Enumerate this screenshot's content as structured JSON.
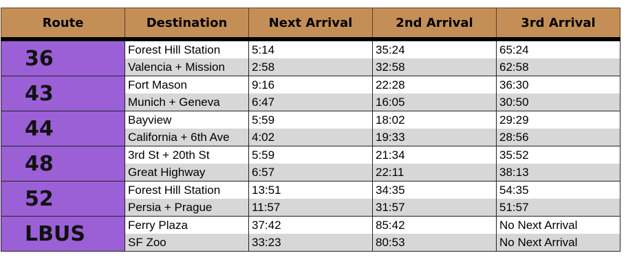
{
  "headers": {
    "route": "Route",
    "destination": "Destination",
    "next": "Next Arrival",
    "second": "2nd Arrival",
    "third": "3rd Arrival"
  },
  "routes": [
    {
      "route": "36",
      "rows": [
        {
          "destination": "Forest Hill Station",
          "next": "5:14",
          "second": "35:24",
          "third": "65:24"
        },
        {
          "destination": "Valencia + Mission",
          "next": "2:58",
          "second": "32:58",
          "third": "62:58"
        }
      ]
    },
    {
      "route": "43",
      "rows": [
        {
          "destination": "Fort Mason",
          "next": "9:16",
          "second": "22:28",
          "third": "36:30"
        },
        {
          "destination": "Munich + Geneva",
          "next": "6:47",
          "second": "16:05",
          "third": "30:50"
        }
      ]
    },
    {
      "route": "44",
      "rows": [
        {
          "destination": "Bayview",
          "next": "5:59",
          "second": "18:02",
          "third": "29:29"
        },
        {
          "destination": "California + 6th Ave",
          "next": "4:02",
          "second": "19:33",
          "third": "28:56"
        }
      ]
    },
    {
      "route": "48",
      "rows": [
        {
          "destination": "3rd St + 20th St",
          "next": "5:59",
          "second": "21:34",
          "third": "35:52"
        },
        {
          "destination": "Great Highway",
          "next": "6:57",
          "second": "22:11",
          "third": "38:13"
        }
      ]
    },
    {
      "route": "52",
      "rows": [
        {
          "destination": "Forest Hill Station",
          "next": "13:51",
          "second": "34:35",
          "third": "54:35"
        },
        {
          "destination": "Persia + Prague",
          "next": "11:57",
          "second": "31:57",
          "third": "51:57"
        }
      ]
    },
    {
      "route": "LBUS",
      "rows": [
        {
          "destination": "Ferry Plaza",
          "next": "37:42",
          "second": "85:42",
          "third": "No Next Arrival"
        },
        {
          "destination": "SF Zoo",
          "next": "33:23",
          "second": "80:53",
          "third": "No Next Arrival"
        }
      ]
    }
  ],
  "colors": {
    "header_bg": "#c48f57",
    "route_bg": "#9b5fd6",
    "row_alt_bg": "#d7d7d7"
  }
}
